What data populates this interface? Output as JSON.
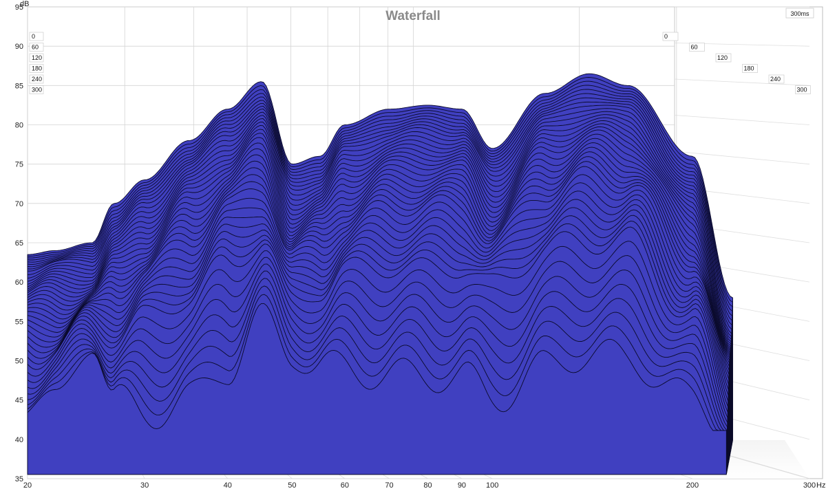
{
  "chart_data": {
    "type": "area",
    "title": "Waterfall",
    "ylabel": "dB",
    "xlabel": "Hz",
    "y_ticks": [
      "35",
      "40",
      "45",
      "50",
      "55",
      "60",
      "65",
      "70",
      "75",
      "80",
      "85",
      "90",
      "95"
    ],
    "x_ticks": [
      "20",
      "30",
      "40",
      "50",
      "60",
      "70",
      "80",
      "90",
      "100",
      "200",
      "300"
    ],
    "x_scale": "log",
    "xlim": [
      20,
      300
    ],
    "ylim": [
      35,
      95
    ],
    "depth_axis_label": "300ms",
    "time_ticks_left": [
      "0",
      "60",
      "120",
      "180",
      "240",
      "300"
    ],
    "time_ticks_right": [
      "0",
      "60",
      "120",
      "180",
      "240",
      "300"
    ],
    "time_range_ms": [
      0,
      300
    ],
    "fill_color": "#4040c0",
    "slices": [
      {
        "t": 0,
        "freqs": [
          20,
          22,
          25,
          27,
          30,
          35,
          40,
          45,
          50,
          55,
          60,
          70,
          80,
          90,
          100,
          120,
          140,
          160,
          200,
          230
        ],
        "levels": [
          63.5,
          64,
          65,
          70,
          73,
          78,
          82,
          85.5,
          75,
          76,
          80,
          82,
          82.5,
          82,
          77,
          84,
          86.5,
          85,
          76,
          58
        ]
      },
      {
        "t": 60,
        "freqs": [
          20,
          22,
          25,
          27,
          30,
          35,
          40,
          45,
          50,
          55,
          60,
          70,
          80,
          90,
          100,
          120,
          140,
          160,
          200,
          230
        ],
        "levels": [
          62,
          62.5,
          63,
          67,
          70,
          75,
          79,
          82,
          72,
          73,
          77,
          79,
          79.5,
          79,
          74,
          81,
          83,
          82,
          72,
          54
        ]
      },
      {
        "t": 120,
        "freqs": [
          20,
          22,
          25,
          27,
          30,
          35,
          40,
          45,
          50,
          55,
          60,
          70,
          80,
          90,
          100,
          120,
          140,
          160,
          200,
          230
        ],
        "levels": [
          59,
          59.5,
          60,
          63,
          66,
          71,
          75,
          78,
          68,
          69,
          73,
          75,
          75.5,
          75,
          70,
          77,
          79,
          78,
          68,
          51
        ]
      },
      {
        "t": 180,
        "freqs": [
          20,
          22,
          25,
          27,
          30,
          35,
          40,
          45,
          50,
          55,
          60,
          70,
          80,
          90,
          100,
          120,
          140,
          160,
          200,
          230
        ],
        "levels": [
          55,
          56,
          57,
          59,
          62,
          66,
          70,
          73,
          64,
          65,
          68,
          70,
          70.5,
          70,
          66,
          72,
          74,
          73,
          63,
          48
        ]
      },
      {
        "t": 240,
        "freqs": [
          20,
          22,
          25,
          27,
          30,
          35,
          40,
          45,
          50,
          55,
          60,
          70,
          80,
          90,
          100,
          120,
          140,
          160,
          200,
          230
        ],
        "levels": [
          51,
          52,
          55,
          54,
          56,
          59,
          63,
          66,
          58,
          60,
          62,
          63,
          62,
          63,
          60,
          65,
          66,
          66,
          56,
          45
        ]
      },
      {
        "t": 300,
        "freqs": [
          20,
          22,
          25,
          27,
          30,
          35,
          40,
          45,
          50,
          55,
          60,
          70,
          80,
          90,
          100,
          120,
          140,
          160,
          200,
          230
        ],
        "levels": [
          46,
          45,
          54,
          46,
          44,
          46,
          50,
          56,
          52,
          50,
          50,
          49,
          49,
          49,
          46,
          50,
          52,
          51,
          46,
          42
        ]
      }
    ],
    "grid": true,
    "legend": "none"
  }
}
